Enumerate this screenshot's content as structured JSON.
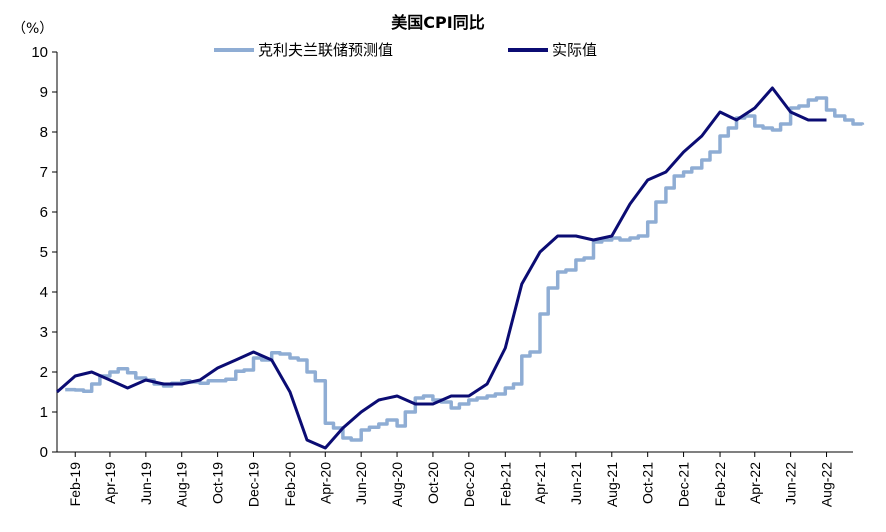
{
  "chart_data": {
    "type": "line",
    "title": "美国CPI同比",
    "unit_label": "（%）",
    "xlabel": "",
    "ylabel": "",
    "ylim": [
      0,
      10
    ],
    "yticks": [
      0,
      1,
      2,
      3,
      4,
      5,
      6,
      7,
      8,
      9,
      10
    ],
    "grid": false,
    "legend_position": "top",
    "x_tick_labels": [
      "Feb-19",
      "Apr-19",
      "Jun-19",
      "Aug-19",
      "Oct-19",
      "Dec-19",
      "Feb-20",
      "Apr-20",
      "Jun-20",
      "Aug-20",
      "Oct-20",
      "Dec-20",
      "Feb-21",
      "Apr-21",
      "Jun-21",
      "Aug-21",
      "Oct-21",
      "Dec-21",
      "Feb-22",
      "Apr-22",
      "Jun-22",
      "Aug-22"
    ],
    "series": [
      {
        "name": "克利夫兰联储预测值",
        "color": "#8fadd4",
        "style": "step",
        "x": [
          "2019-01-15",
          "2019-02-01",
          "2019-02-15",
          "2019-03-01",
          "2019-03-15",
          "2019-04-01",
          "2019-04-15",
          "2019-05-01",
          "2019-05-15",
          "2019-06-01",
          "2019-06-15",
          "2019-07-01",
          "2019-07-15",
          "2019-08-01",
          "2019-08-15",
          "2019-09-01",
          "2019-09-15",
          "2019-10-01",
          "2019-10-15",
          "2019-11-01",
          "2019-11-15",
          "2019-12-01",
          "2019-12-15",
          "2020-01-01",
          "2020-01-15",
          "2020-02-01",
          "2020-02-15",
          "2020-03-01",
          "2020-03-15",
          "2020-04-01",
          "2020-04-15",
          "2020-05-01",
          "2020-05-15",
          "2020-06-01",
          "2020-06-15",
          "2020-07-01",
          "2020-07-15",
          "2020-08-01",
          "2020-08-15",
          "2020-09-01",
          "2020-09-15",
          "2020-10-01",
          "2020-10-15",
          "2020-11-01",
          "2020-11-15",
          "2020-12-01",
          "2020-12-15",
          "2021-01-01",
          "2021-01-15",
          "2021-02-01",
          "2021-02-15",
          "2021-03-01",
          "2021-03-15",
          "2021-04-01",
          "2021-04-15",
          "2021-05-01",
          "2021-05-15",
          "2021-06-01",
          "2021-06-15",
          "2021-07-01",
          "2021-07-15",
          "2021-08-01",
          "2021-08-15",
          "2021-09-01",
          "2021-09-15",
          "2021-10-01",
          "2021-10-15",
          "2021-11-01",
          "2021-11-15",
          "2021-12-01",
          "2021-12-15",
          "2022-01-01",
          "2022-01-15",
          "2022-02-01",
          "2022-02-15",
          "2022-03-01",
          "2022-03-15",
          "2022-04-01",
          "2022-04-15",
          "2022-05-01",
          "2022-05-15",
          "2022-06-01",
          "2022-06-15",
          "2022-07-01",
          "2022-07-15",
          "2022-08-01",
          "2022-08-15",
          "2022-09-01",
          "2022-09-15",
          "2022-10-01"
        ],
        "values": [
          1.56,
          1.55,
          1.52,
          1.7,
          1.9,
          2.0,
          2.08,
          1.98,
          1.85,
          1.8,
          1.7,
          1.65,
          1.72,
          1.78,
          1.75,
          1.72,
          1.78,
          1.78,
          1.82,
          2.02,
          2.05,
          2.35,
          2.3,
          2.48,
          2.45,
          2.35,
          2.3,
          2.0,
          1.78,
          0.72,
          0.6,
          0.35,
          0.3,
          0.55,
          0.62,
          0.7,
          0.8,
          0.65,
          1.0,
          1.35,
          1.4,
          1.3,
          1.25,
          1.1,
          1.2,
          1.3,
          1.35,
          1.4,
          1.45,
          1.6,
          1.7,
          2.4,
          2.5,
          3.45,
          4.1,
          4.5,
          4.55,
          4.8,
          4.85,
          5.25,
          5.3,
          5.35,
          5.3,
          5.35,
          5.4,
          5.75,
          6.25,
          6.6,
          6.9,
          7.0,
          7.1,
          7.3,
          7.5,
          7.9,
          8.1,
          8.35,
          8.4,
          8.15,
          8.1,
          8.05,
          8.2,
          8.6,
          8.65,
          8.8,
          8.85,
          8.55,
          8.4,
          8.3,
          8.2,
          8.18
        ]
      },
      {
        "name": "实际值",
        "color": "#0b0c73",
        "style": "line",
        "x": [
          "2019-01-01",
          "2019-02-01",
          "2019-03-01",
          "2019-04-01",
          "2019-05-01",
          "2019-06-01",
          "2019-07-01",
          "2019-08-01",
          "2019-09-01",
          "2019-10-01",
          "2019-11-01",
          "2019-12-01",
          "2020-01-01",
          "2020-02-01",
          "2020-03-01",
          "2020-04-01",
          "2020-05-01",
          "2020-06-01",
          "2020-07-01",
          "2020-08-01",
          "2020-09-01",
          "2020-10-01",
          "2020-11-01",
          "2020-12-01",
          "2021-01-01",
          "2021-02-01",
          "2021-03-01",
          "2021-04-01",
          "2021-05-01",
          "2021-06-01",
          "2021-07-01",
          "2021-08-01",
          "2021-09-01",
          "2021-10-01",
          "2021-11-01",
          "2021-12-01",
          "2022-01-01",
          "2022-02-01",
          "2022-03-01",
          "2022-04-01",
          "2022-05-01",
          "2022-06-01",
          "2022-07-01",
          "2022-08-01"
        ],
        "values": [
          1.5,
          1.9,
          2.0,
          1.8,
          1.6,
          1.8,
          1.7,
          1.7,
          1.8,
          2.1,
          2.3,
          2.5,
          2.3,
          1.5,
          0.3,
          0.1,
          0.6,
          1.0,
          1.3,
          1.4,
          1.2,
          1.2,
          1.4,
          1.4,
          1.7,
          2.6,
          4.2,
          5.0,
          5.4,
          5.4,
          5.3,
          5.4,
          6.2,
          6.8,
          7.0,
          7.5,
          7.9,
          8.5,
          8.3,
          8.6,
          9.1,
          8.5,
          8.3,
          8.3
        ]
      }
    ]
  }
}
